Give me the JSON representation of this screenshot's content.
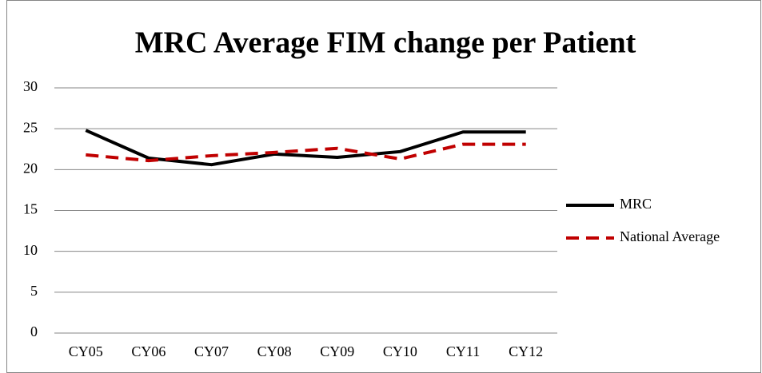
{
  "chart_data": {
    "type": "line",
    "title": "MRC Average FIM change per Patient",
    "categories": [
      "CY05",
      "CY06",
      "CY07",
      "CY08",
      "CY09",
      "CY10",
      "CY11",
      "CY12"
    ],
    "series": [
      {
        "name": "MRC",
        "color": "#000000",
        "dash": false,
        "values": [
          24.8,
          21.4,
          20.6,
          21.9,
          21.5,
          22.2,
          24.6,
          24.6
        ]
      },
      {
        "name": "National Average",
        "color": "#c00000",
        "dash": true,
        "values": [
          21.8,
          21.1,
          21.7,
          22.1,
          22.6,
          21.3,
          23.1,
          23.1
        ]
      }
    ],
    "ylim": [
      0,
      30
    ],
    "yticks": [
      0,
      5,
      10,
      15,
      20,
      25,
      30
    ],
    "grid": true,
    "legend": "right"
  }
}
